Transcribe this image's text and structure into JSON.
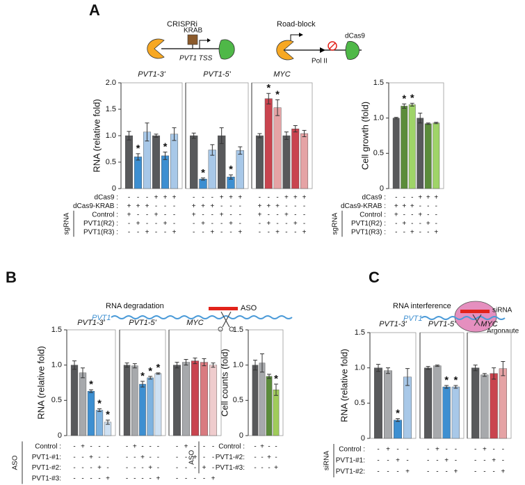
{
  "figure": {
    "labels": [
      "A",
      "B",
      "C"
    ]
  },
  "diagrams": {
    "A": {
      "crispri": "CRISPRi",
      "krab": "KRAB",
      "tss": "PVT1 TSS",
      "roadblock": "Road-block",
      "dcas9": "dCas9",
      "pol": "Pol II"
    },
    "B": {
      "title": "RNA degradation",
      "rna": "PVT1",
      "aso": "ASO"
    },
    "C": {
      "title": "RNA interference",
      "rna": "PVT1",
      "sirna": "siRNA",
      "argonaute": "Argonaute"
    }
  },
  "chart_data": [
    {
      "type": "bar",
      "ylabel": "RNA (relative fold)",
      "ylim": [
        0,
        2
      ],
      "yticks": [
        0,
        0.5,
        {
          "value": 1,
          "label": "1.0"
        },
        1.5,
        {
          "value": 2,
          "label": "2.0"
        }
      ],
      "panels": [
        {
          "title": "PVT1-3'",
          "values": [
            1.0,
            0.6,
            1.07,
            1.0,
            0.62,
            1.03
          ],
          "errors": [
            0.08,
            0.06,
            0.17,
            0.03,
            0.07,
            0.12
          ],
          "colors": [
            "#58595b",
            "#3d8fd1",
            "#a8c8e8",
            "#58595b",
            "#3d8fd1",
            "#a8c8e8"
          ],
          "significance": [
            null,
            "*",
            null,
            null,
            "*",
            null
          ]
        },
        {
          "title": "PVT1-5'",
          "values": [
            1.0,
            0.18,
            0.73,
            1.0,
            0.22,
            0.72
          ],
          "errors": [
            0.05,
            0.02,
            0.1,
            0.15,
            0.04,
            0.07
          ],
          "colors": [
            "#58595b",
            "#3d8fd1",
            "#a8c8e8",
            "#58595b",
            "#3d8fd1",
            "#a8c8e8"
          ],
          "significance": [
            null,
            "*",
            null,
            null,
            "*",
            null
          ]
        },
        {
          "title": "MYC",
          "values": [
            1.0,
            1.7,
            1.53,
            1.0,
            1.13,
            1.04
          ],
          "errors": [
            0.04,
            0.1,
            0.15,
            0.07,
            0.06,
            0.06
          ],
          "colors": [
            "#58595b",
            "#c9444f",
            "#e5a3a5",
            "#58595b",
            "#c9444f",
            "#e5a3a5"
          ],
          "significance": [
            null,
            "*",
            "*",
            null,
            null,
            null
          ]
        }
      ],
      "conditions": [
        {
          "label": "dCas9 :",
          "marks": [
            [
              "-",
              "-",
              "-",
              "+",
              "+",
              "+"
            ],
            [
              "-",
              "-",
              "-",
              "+",
              "+",
              "+"
            ],
            [
              "-",
              "-",
              "-",
              "+",
              "+",
              "+"
            ]
          ]
        },
        {
          "label": "dCas9-KRAB :",
          "marks": [
            [
              "+",
              "+",
              "+",
              "-",
              "-",
              "-"
            ],
            [
              "+",
              "+",
              "+",
              "-",
              "-",
              "-"
            ],
            [
              "+",
              "+",
              "+",
              "-",
              "-",
              "-"
            ]
          ]
        }
      ],
      "condition_group": {
        "label": "sgRNA",
        "conditions": [
          {
            "label": "Control :",
            "marks": [
              [
                "+",
                "-",
                "-",
                "+",
                "-",
                "-"
              ],
              [
                "+",
                "-",
                "-",
                "+",
                "-",
                "-"
              ],
              [
                "+",
                "-",
                "-",
                "+",
                "-",
                "-"
              ]
            ]
          },
          {
            "label": "PVT1(R2) :",
            "marks": [
              [
                "-",
                "+",
                "-",
                "-",
                "+",
                "-"
              ],
              [
                "-",
                "+",
                "-",
                "-",
                "+",
                "-"
              ],
              [
                "-",
                "+",
                "-",
                "-",
                "+",
                "-"
              ]
            ]
          },
          {
            "label": "PVT1(R3) :",
            "marks": [
              [
                "-",
                "-",
                "+",
                "-",
                "-",
                "+"
              ],
              [
                "-",
                "-",
                "+",
                "-",
                "-",
                "+"
              ],
              [
                "-",
                "-",
                "+",
                "-",
                "-",
                "+"
              ]
            ]
          }
        ]
      }
    },
    {
      "type": "bar",
      "ylabel": "Cell growth (fold)",
      "ylim": [
        0,
        1.5
      ],
      "yticks": [
        0,
        0.5,
        {
          "value": 1,
          "label": "1.0"
        },
        1.5
      ],
      "panels": [
        {
          "values": [
            1.0,
            1.17,
            1.19,
            1.0,
            0.92,
            0.93
          ],
          "errors": [
            0.01,
            0.03,
            0.02,
            0.07,
            0.01,
            0.01
          ],
          "colors": [
            "#58595b",
            "#5b8c3a",
            "#9fd468",
            "#58595b",
            "#5b8c3a",
            "#9fd468"
          ],
          "significance": [
            null,
            "*",
            "*",
            null,
            null,
            null
          ]
        }
      ],
      "conditions": [
        {
          "label": "dCas9 :",
          "marks": [
            [
              "-",
              "-",
              "-",
              "+",
              "+",
              "+"
            ]
          ]
        },
        {
          "label": "dCas9-KRAB :",
          "marks": [
            [
              "+",
              "+",
              "+",
              "-",
              "-",
              "-"
            ]
          ]
        }
      ],
      "condition_group": {
        "label": "sgRNA",
        "conditions": [
          {
            "label": "Control :",
            "marks": [
              [
                "+",
                "-",
                "-",
                "+",
                "-",
                "-"
              ]
            ]
          },
          {
            "label": "PVT1(R2) :",
            "marks": [
              [
                "-",
                "+",
                "-",
                "-",
                "+",
                "-"
              ]
            ]
          },
          {
            "label": "PVT1(R3) :",
            "marks": [
              [
                "-",
                "-",
                "+",
                "-",
                "-",
                "+"
              ]
            ]
          }
        ]
      }
    },
    {
      "type": "bar",
      "ylabel": "RNA (relative fold)",
      "ylim": [
        0,
        1.5
      ],
      "yticks": [
        0,
        0.5,
        {
          "value": 1,
          "label": "1.0"
        },
        1.5
      ],
      "panels": [
        {
          "title": "PVT1-3'",
          "values": [
            1.0,
            0.89,
            0.63,
            0.36,
            0.19
          ],
          "errors": [
            0.06,
            0.07,
            0.02,
            0.02,
            0.03
          ],
          "colors": [
            "#58595b",
            "#a7a9ac",
            "#3d8fd1",
            "#7fb3e0",
            "#cfe1f3"
          ],
          "significance": [
            null,
            null,
            "*",
            "*",
            "*"
          ]
        },
        {
          "title": "PVT1-5'",
          "values": [
            1.0,
            0.99,
            0.73,
            0.82,
            0.88
          ],
          "errors": [
            0.03,
            0.03,
            0.04,
            0.02,
            0.01
          ],
          "colors": [
            "#58595b",
            "#a7a9ac",
            "#3d8fd1",
            "#7fb3e0",
            "#cfe1f3"
          ],
          "significance": [
            null,
            null,
            "*",
            "*",
            "*"
          ]
        },
        {
          "title": "MYC",
          "values": [
            1.0,
            1.04,
            1.06,
            1.04,
            1.0
          ],
          "errors": [
            0.04,
            0.04,
            0.04,
            0.05,
            0.03
          ],
          "colors": [
            "#58595b",
            "#a7a9ac",
            "#c9444f",
            "#d97b80",
            "#efcccd"
          ],
          "significance": [
            null,
            null,
            null,
            null,
            null
          ]
        }
      ],
      "condition_group": {
        "label": "ASO",
        "conditions": [
          {
            "label": "Control :",
            "marks": [
              [
                "-",
                "+",
                "-",
                "-",
                "-"
              ],
              [
                "-",
                "+",
                "-",
                "-",
                "-"
              ],
              [
                "-",
                "+",
                "-",
                "-",
                "-"
              ]
            ]
          },
          {
            "label": "PVT1-#1:",
            "marks": [
              [
                "-",
                "-",
                "+",
                "-",
                "-"
              ],
              [
                "-",
                "-",
                "+",
                "-",
                "-"
              ],
              [
                "-",
                "-",
                "+",
                "-",
                "-"
              ]
            ]
          },
          {
            "label": "PVT1-#2:",
            "marks": [
              [
                "-",
                "-",
                "-",
                "+",
                "-"
              ],
              [
                "-",
                "-",
                "-",
                "+",
                "-"
              ],
              [
                "-",
                "-",
                "-",
                "+",
                "-"
              ]
            ]
          },
          {
            "label": "PVT1-#3:",
            "marks": [
              [
                "-",
                "-",
                "-",
                "-",
                "+"
              ],
              [
                "-",
                "-",
                "-",
                "-",
                "+"
              ],
              [
                "-",
                "-",
                "-",
                "-",
                "+"
              ]
            ]
          }
        ]
      }
    },
    {
      "type": "bar",
      "ylabel": "Cell counts (fold)",
      "ylim": [
        0,
        1.5
      ],
      "yticks": [
        0,
        0.5,
        {
          "value": 1,
          "label": "1.0"
        },
        1.5
      ],
      "panels": [
        {
          "values": [
            1.0,
            1.03,
            0.84,
            0.65
          ],
          "errors": [
            0.07,
            0.13,
            0.03,
            0.08
          ],
          "colors": [
            "#58595b",
            "#a7a9ac",
            "#5b8c3a",
            "#a0cc5a"
          ],
          "significance": [
            null,
            null,
            null,
            "*"
          ]
        }
      ],
      "condition_group": {
        "label": "ASO",
        "conditions": [
          {
            "label": "Control :",
            "marks": [
              [
                "-",
                "+",
                "-",
                "-"
              ]
            ]
          },
          {
            "label": "PVT1-#2:",
            "marks": [
              [
                "-",
                "-",
                "+",
                "-"
              ]
            ]
          },
          {
            "label": "PVT1-#3:",
            "marks": [
              [
                "-",
                "-",
                "-",
                "+"
              ]
            ]
          }
        ]
      }
    },
    {
      "type": "bar",
      "ylabel": "RNA (relative fold)",
      "ylim": [
        0,
        1.5
      ],
      "yticks": [
        0,
        0.5,
        {
          "value": 1,
          "label": "1.0"
        },
        1.5
      ],
      "panels": [
        {
          "title": "PVT1-3'",
          "values": [
            1.0,
            0.96,
            0.26,
            0.87
          ],
          "errors": [
            0.05,
            0.04,
            0.02,
            0.12
          ],
          "colors": [
            "#58595b",
            "#a7a9ac",
            "#3d8fd1",
            "#a8c8e8"
          ],
          "significance": [
            null,
            null,
            "*",
            null
          ]
        },
        {
          "title": "PVT1-5'",
          "values": [
            1.0,
            1.03,
            0.73,
            0.73
          ],
          "errors": [
            0.02,
            0.01,
            0.02,
            0.02
          ],
          "colors": [
            "#58595b",
            "#a7a9ac",
            "#3d8fd1",
            "#a8c8e8"
          ],
          "significance": [
            null,
            null,
            "*",
            "*"
          ]
        },
        {
          "title": "MYC",
          "values": [
            1.0,
            0.9,
            0.92,
            0.99
          ],
          "errors": [
            0.04,
            0.02,
            0.08,
            0.1
          ],
          "colors": [
            "#58595b",
            "#a7a9ac",
            "#c9444f",
            "#e5a3a5"
          ],
          "significance": [
            null,
            null,
            null,
            null
          ]
        }
      ],
      "condition_group": {
        "label": "siRNA",
        "conditions": [
          {
            "label": "Control :",
            "marks": [
              [
                "-",
                "+",
                "-",
                "-"
              ],
              [
                "-",
                "+",
                "-",
                "-"
              ],
              [
                "-",
                "+",
                "-",
                "-"
              ]
            ]
          },
          {
            "label": "PVT1-#1:",
            "marks": [
              [
                "-",
                "-",
                "+",
                "-"
              ],
              [
                "-",
                "-",
                "+",
                "-"
              ],
              [
                "-",
                "-",
                "+",
                "-"
              ]
            ]
          },
          {
            "label": "PVT1-#2:",
            "marks": [
              [
                "-",
                "-",
                "-",
                "+"
              ],
              [
                "-",
                "-",
                "-",
                "+"
              ],
              [
                "-",
                "-",
                "-",
                "+"
              ]
            ]
          }
        ]
      }
    }
  ]
}
